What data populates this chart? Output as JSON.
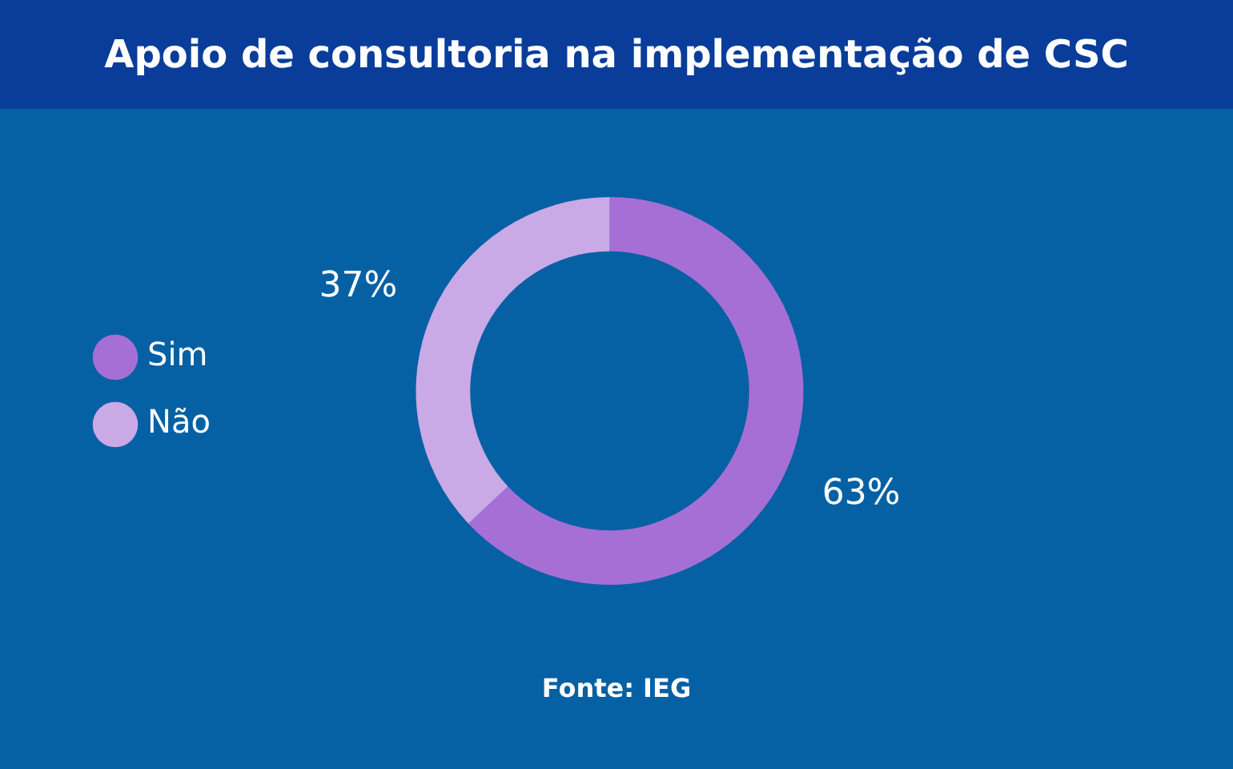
{
  "chart_data": {
    "type": "donut",
    "title": "Apoio de consultoria na implementação de CSC",
    "categories": [
      "Sim",
      "Não"
    ],
    "values": [
      63,
      37
    ],
    "colors": [
      "#a66fd6",
      "#c9a9e6"
    ],
    "value_labels": [
      "63%",
      "37%"
    ],
    "legend": "left",
    "annotations": [
      "Fonte: IEG"
    ]
  }
}
